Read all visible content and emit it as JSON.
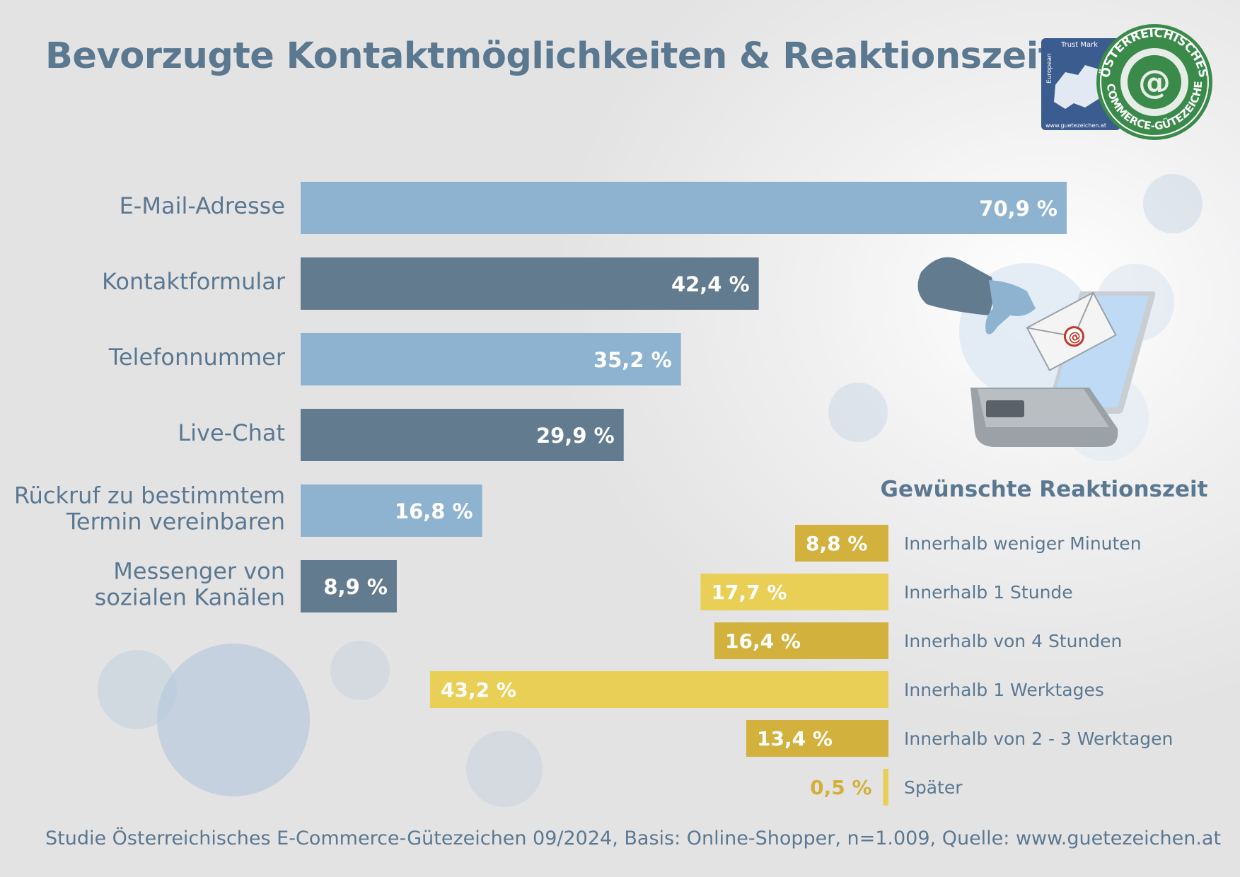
{
  "title": "Bevorzugte Kontaktmöglichkeiten & Reaktionszeit",
  "source": "Studie Österreichisches E-Commerce-Gütezeichen 09/2024, Basis: Online-Shopper, n=1.009, Quelle: www.guetezeichen.at",
  "logo": {
    "trust_mark": "Trust Mark",
    "european": "European",
    "url": "www.guetezeichen.at",
    "seal_text": "ÖSTERREICHISCHES E-COMMERCE-GÜTEZEICHEN"
  },
  "colors": {
    "title": "#5b7891",
    "bar_light": "#8eb3d1",
    "bar_dark": "#627b8f",
    "gold_dark": "#d2b13c",
    "gold_light": "#e9cf55",
    "gold_text": "#d4b03a"
  },
  "chart_data": [
    {
      "type": "bar",
      "orientation": "horizontal",
      "title": "Bevorzugte Kontaktmöglichkeiten",
      "categories": [
        [
          "E-Mail-Adresse"
        ],
        [
          "Kontaktformular"
        ],
        [
          "Telefonnummer"
        ],
        [
          "Live-Chat"
        ],
        [
          "Rückruf zu bestimmtem",
          "Termin vereinbaren"
        ],
        [
          "Messenger von",
          "sozialen Kanälen"
        ]
      ],
      "values": [
        70.9,
        42.4,
        35.2,
        29.9,
        16.8,
        8.9
      ],
      "value_labels": [
        "70,9 %",
        "42,4 %",
        "35,2 %",
        "29,9 %",
        "16,8 %",
        "8,9 %"
      ],
      "unit": "%",
      "xlim": [
        0,
        70.9
      ]
    },
    {
      "type": "bar",
      "orientation": "horizontal",
      "title": "Gewünschte Reaktionszeit",
      "categories": [
        "Innerhalb weniger Minuten",
        "Innerhalb 1 Stunde",
        "Innerhalb von 4 Stunden",
        "Innerhalb 1 Werktages",
        "Innerhalb von 2 - 3 Werktagen",
        "Später"
      ],
      "values": [
        8.8,
        17.7,
        16.4,
        43.2,
        13.4,
        0.5
      ],
      "value_labels": [
        "8,8 %",
        "17,7 %",
        "16,4 %",
        "43,2 %",
        "13,4 %",
        "0,5 %"
      ],
      "unit": "%",
      "xlim": [
        0,
        43.2
      ]
    }
  ]
}
